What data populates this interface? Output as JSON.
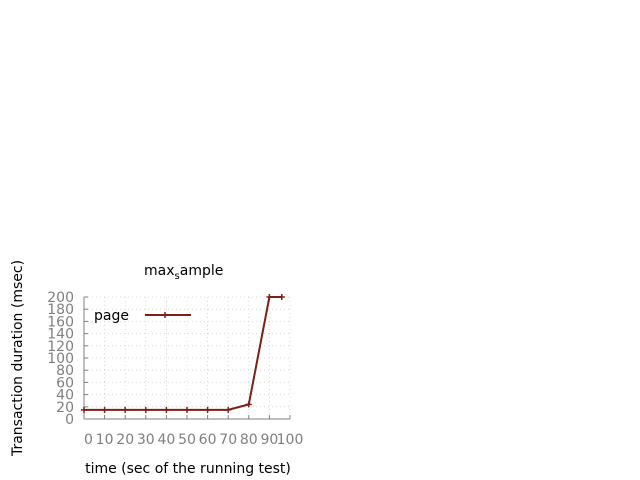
{
  "chart_data": {
    "type": "line",
    "title": {
      "main": "max",
      "sub": "s",
      "rest": "ample"
    },
    "xlabel": "time (sec of the running test)",
    "ylabel": "Transaction duration (msec)",
    "xlim": [
      0,
      100
    ],
    "ylim": [
      0,
      200
    ],
    "xticks": [
      0,
      10,
      20,
      30,
      40,
      50,
      60,
      70,
      80,
      90,
      100
    ],
    "yticks": [
      0,
      20,
      40,
      60,
      80,
      100,
      120,
      140,
      160,
      180,
      200
    ],
    "grid": true,
    "legend_position": "top-left",
    "series": [
      {
        "name": "page",
        "color": "#7f1f14",
        "x": [
          0,
          10,
          20,
          30,
          40,
          50,
          60,
          70,
          80,
          90,
          96
        ],
        "y": [
          15,
          15,
          15,
          15,
          15,
          15,
          15,
          15,
          24,
          200,
          200
        ]
      }
    ]
  }
}
